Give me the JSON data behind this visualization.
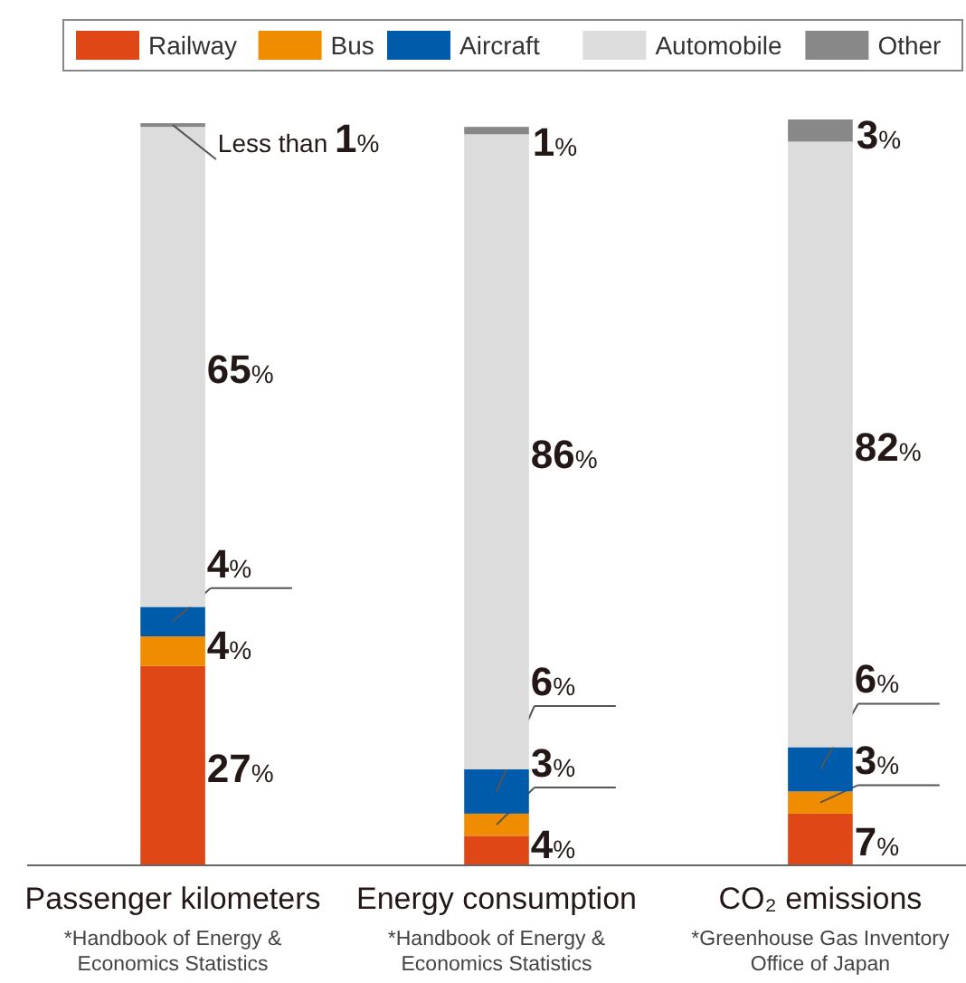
{
  "chart_data": {
    "type": "bar",
    "stacked": true,
    "legend": "top",
    "ylim": [
      0,
      101
    ],
    "categories": [
      "Passenger kilometers",
      "Energy consumption",
      "CO₂ emissions"
    ],
    "series": [
      {
        "name": "Railway",
        "color": "#e04716",
        "values": [
          27,
          4,
          7
        ],
        "value_labels": [
          "27%",
          "4%",
          "7%"
        ]
      },
      {
        "name": "Bus",
        "color": "#f08c00",
        "values": [
          4,
          3,
          3
        ],
        "value_labels": [
          "4%",
          "3%",
          "3%"
        ]
      },
      {
        "name": "Aircraft",
        "color": "#005bab",
        "values": [
          4,
          6,
          6
        ],
        "value_labels": [
          "4%",
          "6%",
          "6%"
        ]
      },
      {
        "name": "Automobile",
        "color": "#dcdcdc",
        "values": [
          65,
          86,
          82
        ],
        "value_labels": [
          "65%",
          "86%",
          "82%"
        ]
      },
      {
        "name": "Other",
        "color": "#888888",
        "values": [
          0.5,
          1,
          3
        ],
        "value_labels": [
          "Less than 1%",
          "1%",
          "3%"
        ]
      }
    ],
    "annotations": [
      "*Handbook of Energy & Economics Statistics",
      "*Handbook of Energy & Economics Statistics",
      "*Greenhouse Gas Inventory Office of Japan"
    ]
  }
}
